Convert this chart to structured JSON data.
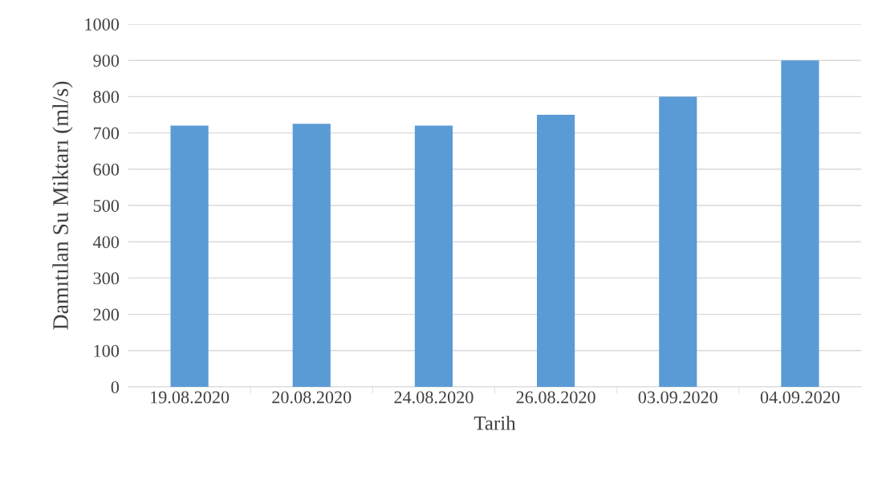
{
  "chart_data": {
    "type": "bar",
    "categories": [
      "19.08.2020",
      "20.08.2020",
      "24.08.2020",
      "26.08.2020",
      "03.09.2020",
      "04.09.2020"
    ],
    "values": [
      720,
      725,
      720,
      750,
      800,
      900
    ],
    "color": "#5b9bd5",
    "xlabel": "Tarih",
    "ylabel": "Damıtılan Su Miktarı (ml/s)",
    "ylim": [
      0,
      1000
    ],
    "yticks": [
      0,
      100,
      200,
      300,
      400,
      500,
      600,
      700,
      800,
      900,
      1000
    ],
    "grid": "y"
  }
}
